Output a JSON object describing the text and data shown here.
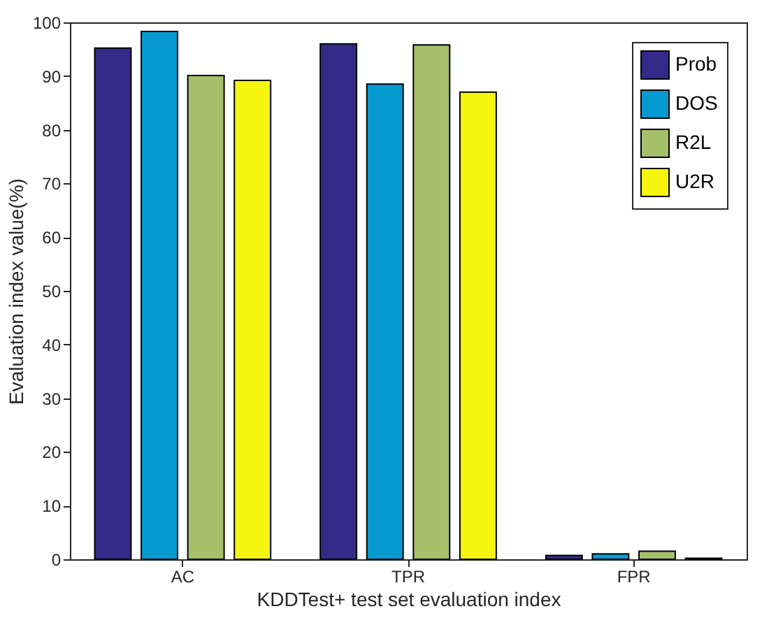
{
  "chart_data": {
    "type": "bar",
    "xlabel": "KDDTest+ test set evaluation index",
    "ylabel": "Evaluation index value(%)",
    "categories": [
      "AC",
      "TPR",
      "FPR"
    ],
    "series": [
      {
        "name": "Prob",
        "color": "#352a87",
        "values": [
          95.2,
          96.0,
          0.7
        ]
      },
      {
        "name": "DOS",
        "color": "#069ad0",
        "values": [
          98.3,
          88.5,
          1.0
        ]
      },
      {
        "name": "R2L",
        "color": "#a5bf6b",
        "values": [
          90.1,
          95.8,
          1.5
        ]
      },
      {
        "name": "U2R",
        "color": "#f5f50f",
        "values": [
          89.2,
          87.0,
          0.2
        ]
      }
    ],
    "ylim": [
      0,
      100
    ],
    "yticks": [
      0,
      10,
      20,
      30,
      40,
      50,
      60,
      70,
      80,
      90,
      100
    ],
    "legend": "top right"
  }
}
